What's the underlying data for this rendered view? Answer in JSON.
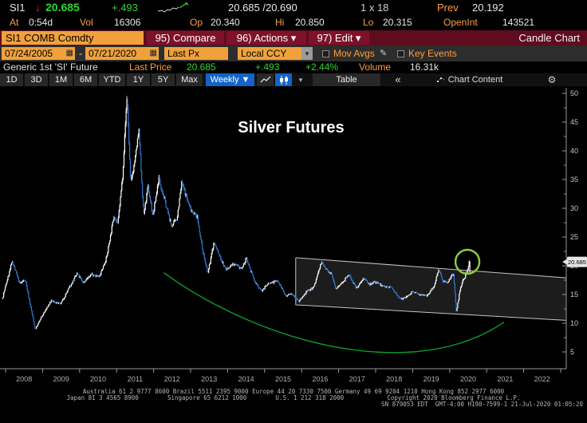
{
  "quote_row": {
    "ticker": "SI1",
    "direction_arrow": "↓",
    "last": "20.685",
    "change": "+.493",
    "bid_ask": "20.685 /20.690",
    "size": "1 x 18",
    "prev_label": "Prev",
    "prev": "20.192"
  },
  "stats_row": {
    "at_label": "At",
    "at_value": "0:54d",
    "vol_label": "Vol",
    "vol_value": "16306",
    "open_label": "Op",
    "open_value": "20.340",
    "high_label": "Hi",
    "high_value": "20.850",
    "low_label": "Lo",
    "low_value": "20.315",
    "open_int_label": "OpenInt",
    "open_int_value": "143521"
  },
  "menu_bar": {
    "security": "SI1 COMB Comdty",
    "compare": "95) Compare",
    "actions": "96) Actions ▾",
    "edit": "97) Edit ▾",
    "right_label": "Candle Chart"
  },
  "settings_bar": {
    "date_from": "07/24/2005",
    "date_sep": "-",
    "date_to": "07/21/2020",
    "price_field": "Last Px",
    "currency": "Local CCY",
    "mov_avgs_label": "Mov Avgs",
    "key_events_label": "Key Events"
  },
  "summary_row": {
    "description": "Generic 1st 'SI' Future",
    "last_price_label": "Last Price",
    "last_price": "20.685",
    "change": "+.493",
    "change_pct": "+2.44%",
    "volume_label": "Volume",
    "volume": "16.31k"
  },
  "toolbar": {
    "ranges": [
      "1D",
      "3D",
      "1M",
      "6M",
      "YTD",
      "1Y",
      "5Y",
      "Max"
    ],
    "period": "Weekly ▼",
    "table": "Table",
    "collapse": "«",
    "chart_content": "Chart Content"
  },
  "footer": {
    "line1": "Australia 61 2 9777 8600 Brazil 5511 2395 9000 Europe 44 20 7330 7500 Germany 49 69 9204 1210 Hong Kong 852 2977 6000",
    "line2": "Japan 81 3 4565 8900        Singapore 65 6212 1000        U.S. 1 212 318 2000            Copyright 2020 Bloomberg Finance L.P.",
    "line3": "SN 879053 EDT  GMT-4:00 H190-7599-1 21-Jul-2020 01:05:20"
  },
  "chart_data": {
    "type": "candlestick",
    "title": "Silver Futures",
    "interval": "weekly",
    "y_ticks": [
      5,
      10,
      15,
      20,
      25,
      30,
      35,
      40,
      45,
      50
    ],
    "y_minor_step": 2.5,
    "ylim": [
      2.5,
      52
    ],
    "x_tick_years": [
      2008,
      2009,
      2010,
      2011,
      2012,
      2013,
      2014,
      2015,
      2016,
      2017,
      2018,
      2019,
      2020,
      2021,
      2022
    ],
    "xlim_years": [
      2007.9,
      2023.2
    ],
    "last_price": 20.685,
    "last_price_label": "20.685",
    "last_candle": {
      "open": 18.9,
      "high": 20.85,
      "low": 18.75,
      "close": 20.685
    },
    "series_anchors": [
      [
        2007.93,
        14.3
      ],
      [
        2008.05,
        17.2
      ],
      [
        2008.2,
        20.8
      ],
      [
        2008.4,
        16.9
      ],
      [
        2008.55,
        17.6
      ],
      [
        2008.82,
        8.9
      ],
      [
        2009.0,
        11.2
      ],
      [
        2009.25,
        13.9
      ],
      [
        2009.5,
        13.3
      ],
      [
        2009.75,
        16.3
      ],
      [
        2009.95,
        18.6
      ],
      [
        2010.12,
        17.1
      ],
      [
        2010.35,
        18.6
      ],
      [
        2010.55,
        18.0
      ],
      [
        2010.75,
        21.5
      ],
      [
        2010.95,
        28.8
      ],
      [
        2011.05,
        27.2
      ],
      [
        2011.18,
        35.5
      ],
      [
        2011.3,
        49.8
      ],
      [
        2011.4,
        34.2
      ],
      [
        2011.52,
        38.6
      ],
      [
        2011.62,
        43.6
      ],
      [
        2011.75,
        28.8
      ],
      [
        2011.87,
        33.8
      ],
      [
        2012.0,
        28.6
      ],
      [
        2012.16,
        35.3
      ],
      [
        2012.35,
        30.6
      ],
      [
        2012.5,
        26.9
      ],
      [
        2012.65,
        28.2
      ],
      [
        2012.78,
        34.5
      ],
      [
        2013.0,
        30.1
      ],
      [
        2013.2,
        28.4
      ],
      [
        2013.33,
        23.2
      ],
      [
        2013.48,
        18.6
      ],
      [
        2013.65,
        24.1
      ],
      [
        2013.82,
        21.4
      ],
      [
        2013.97,
        19.3
      ],
      [
        2014.15,
        20.3
      ],
      [
        2014.4,
        19.5
      ],
      [
        2014.53,
        21.3
      ],
      [
        2014.75,
        17.2
      ],
      [
        2014.95,
        15.6
      ],
      [
        2015.1,
        16.9
      ],
      [
        2015.38,
        17.4
      ],
      [
        2015.6,
        14.6
      ],
      [
        2015.75,
        15.3
      ],
      [
        2015.95,
        13.8
      ],
      [
        2016.15,
        15.4
      ],
      [
        2016.35,
        16.3
      ],
      [
        2016.55,
        20.6
      ],
      [
        2016.7,
        19.3
      ],
      [
        2016.82,
        18.6
      ],
      [
        2016.95,
        15.9
      ],
      [
        2017.15,
        17.4
      ],
      [
        2017.3,
        18.4
      ],
      [
        2017.5,
        16.1
      ],
      [
        2017.68,
        17.8
      ],
      [
        2017.85,
        16.8
      ],
      [
        2018.0,
        17.2
      ],
      [
        2018.2,
        16.5
      ],
      [
        2018.45,
        16.2
      ],
      [
        2018.7,
        14.1
      ],
      [
        2018.85,
        14.6
      ],
      [
        2019.0,
        15.4
      ],
      [
        2019.2,
        15.1
      ],
      [
        2019.42,
        14.9
      ],
      [
        2019.6,
        16.5
      ],
      [
        2019.72,
        19.5
      ],
      [
        2019.83,
        17.4
      ],
      [
        2019.95,
        17.1
      ],
      [
        2020.05,
        18.0
      ],
      [
        2020.12,
        18.6
      ],
      [
        2020.2,
        11.9
      ],
      [
        2020.28,
        15.1
      ],
      [
        2020.36,
        17.3
      ],
      [
        2020.44,
        18.2
      ],
      [
        2020.5,
        19.2
      ],
      [
        2020.55,
        20.685
      ]
    ],
    "colors": {
      "up": "#ffffff",
      "down": "#3279cf",
      "axis": "#999999",
      "tick_label": "#c8c8c8",
      "channel_fill": "rgba(220,220,220,0.13)",
      "channel_stroke": "#c4c4c4",
      "circle": "#8fc93a",
      "curve": "#0c9b2e",
      "title": "#ffffff",
      "last_price_box": "#e6e6e6"
    },
    "annotations": {
      "channel": {
        "x1_year": 2015.84,
        "x2_year": 2023.2,
        "top_price_start": 21.4,
        "top_price_end": 17.9,
        "bottom_price_start": 13.2,
        "bottom_price_end": 10.5
      },
      "highlight_circle": {
        "year": 2020.48,
        "price": 20.7,
        "radius_px": 15
      },
      "trend_curve": {
        "start": [
          2012.27,
          18.8
        ],
        "c1": [
          2014.96,
          6.3
        ],
        "c2": [
          2019.06,
          -0.5
        ],
        "end": [
          2021.47,
          10.2
        ]
      }
    }
  }
}
